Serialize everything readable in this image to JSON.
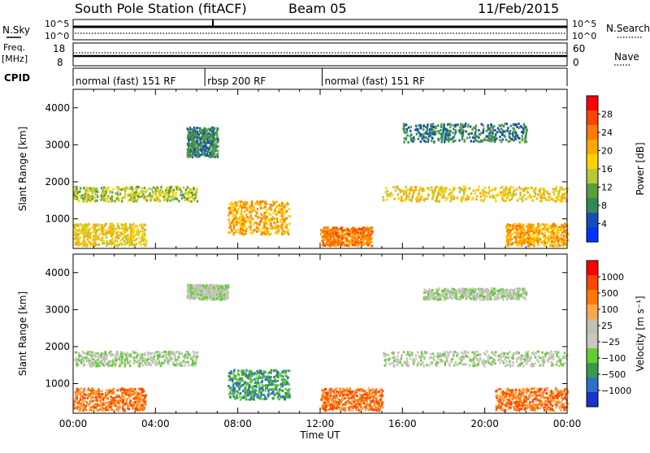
{
  "header": {
    "station": "South Pole Station (fitACF)",
    "beam": "Beam 05",
    "date": "11/Feb/2015"
  },
  "params": {
    "nsky_label": "N.Sky",
    "nsky_ticks": [
      "10^5",
      "10^0"
    ],
    "nsearch_label": "N.Search",
    "nsearch_ticks": [
      "10^5",
      "10^0"
    ],
    "freq_label": "Freq.",
    "freq_unit": "[MHz]",
    "freq_ticks": [
      "18",
      "8"
    ],
    "nave_label": "Nave",
    "nave_ticks": [
      "60",
      "0"
    ],
    "cpid_label": "CPID",
    "cpid_segments": [
      {
        "label": "normal (fast) 151 RF",
        "start": 0,
        "end": 6.4
      },
      {
        "label": "rbsp 200 RF",
        "start": 6.4,
        "end": 12.1
      },
      {
        "label": "normal (fast) 151 RF",
        "start": 12.1,
        "end": 24
      }
    ]
  },
  "chart_data": [
    {
      "type": "heatmap",
      "title": "",
      "xlabel": "",
      "ylabel": "Slant Range [km]",
      "xlim": [
        0,
        24
      ],
      "ylim": [
        200,
        4500
      ],
      "yticks": [
        "1000",
        "2000",
        "3000",
        "4000"
      ],
      "colorbar": {
        "label": "Power [dB]",
        "ticks": [
          "28",
          "24",
          "20",
          "16",
          "12",
          "8",
          "4"
        ],
        "colors": [
          "#0033ff",
          "#1a4db3",
          "#2e8b57",
          "#5a9e3a",
          "#b5c93a",
          "#ffd200",
          "#ffa800",
          "#ff7a00",
          "#ff4400",
          "#ff0000"
        ]
      },
      "regions": [
        {
          "t0": 0.0,
          "t1": 6.0,
          "r0": 1500,
          "r1": 1900,
          "level": 14
        },
        {
          "t0": 0.0,
          "t1": 3.5,
          "r0": 300,
          "r1": 900,
          "level": 18
        },
        {
          "t0": 5.5,
          "t1": 7.0,
          "r0": 2700,
          "r1": 3500,
          "level": 8
        },
        {
          "t0": 7.5,
          "t1": 10.5,
          "r0": 600,
          "r1": 1500,
          "level": 20
        },
        {
          "t0": 12.0,
          "t1": 14.5,
          "r0": 300,
          "r1": 800,
          "level": 24
        },
        {
          "t0": 15.0,
          "t1": 24.0,
          "r0": 1500,
          "r1": 1900,
          "level": 16
        },
        {
          "t0": 16.0,
          "t1": 22.0,
          "r0": 3100,
          "r1": 3600,
          "level": 6
        },
        {
          "t0": 21.0,
          "t1": 24.0,
          "r0": 300,
          "r1": 900,
          "level": 22
        }
      ]
    },
    {
      "type": "heatmap",
      "title": "",
      "xlabel": "Time UT",
      "ylabel": "Slant Range [km]",
      "xlim": [
        0,
        24
      ],
      "ylim": [
        200,
        4500
      ],
      "xticks": [
        "00:00",
        "04:00",
        "08:00",
        "12:00",
        "16:00",
        "20:00",
        "00:00"
      ],
      "yticks": [
        "1000",
        "2000",
        "3000",
        "4000"
      ],
      "colorbar": {
        "label": "Velocity [m s⁻¹]",
        "ticks": [
          "1000",
          "500",
          "100",
          "25",
          "−25",
          "−100",
          "−500",
          "−1000"
        ],
        "colors": [
          "#1a33cc",
          "#2e6fc8",
          "#3a9a4a",
          "#66cc33",
          "#c8c8c0",
          "#c0c0b8",
          "#ffa64d",
          "#ff7a00",
          "#ff4400",
          "#ff0000"
        ]
      },
      "regions": [
        {
          "t0": 0.0,
          "t1": 6.0,
          "r0": 1500,
          "r1": 1900,
          "level": 0
        },
        {
          "t0": 0.0,
          "t1": 3.5,
          "r0": 300,
          "r1": 900,
          "level": -200
        },
        {
          "t0": 5.5,
          "t1": 7.5,
          "r0": 3300,
          "r1": 3700,
          "level": 0
        },
        {
          "t0": 7.5,
          "t1": 10.5,
          "r0": 600,
          "r1": 1400,
          "level": 200
        },
        {
          "t0": 12.0,
          "t1": 15.0,
          "r0": 300,
          "r1": 900,
          "level": -300
        },
        {
          "t0": 15.0,
          "t1": 24.0,
          "r0": 1500,
          "r1": 1900,
          "level": 0
        },
        {
          "t0": 17.0,
          "t1": 22.0,
          "r0": 3300,
          "r1": 3600,
          "level": 0
        },
        {
          "t0": 20.5,
          "t1": 24.0,
          "r0": 300,
          "r1": 900,
          "level": -200
        }
      ]
    }
  ]
}
